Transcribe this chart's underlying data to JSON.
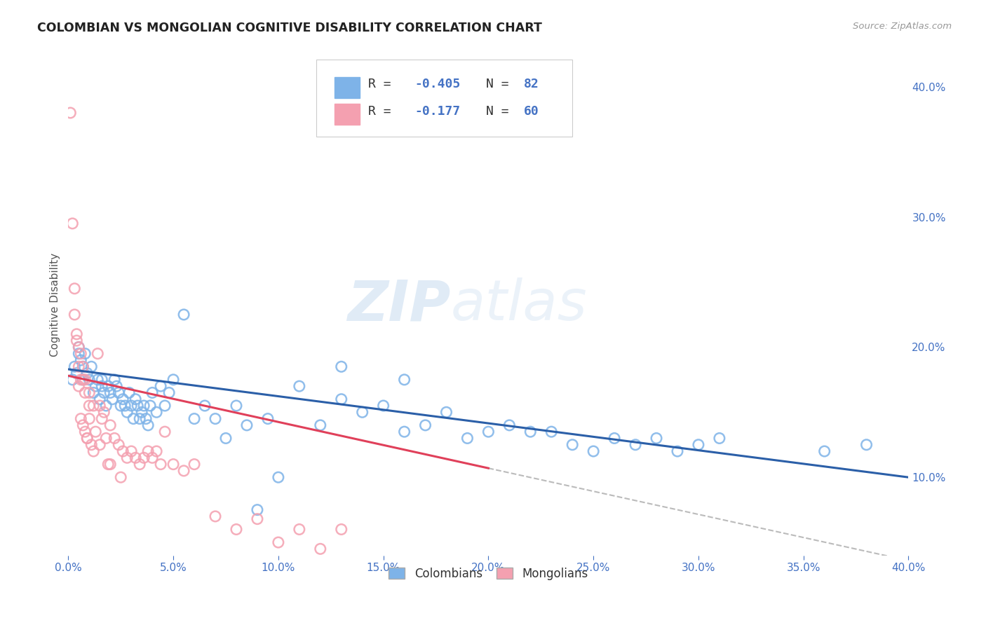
{
  "title": "COLOMBIAN VS MONGOLIAN COGNITIVE DISABILITY CORRELATION CHART",
  "source": "Source: ZipAtlas.com",
  "tick_color": "#4472c4",
  "ylabel": "Cognitive Disability",
  "x_min": 0.0,
  "x_max": 0.4,
  "y_min": 0.04,
  "y_max": 0.425,
  "watermark_zip": "ZIP",
  "watermark_atlas": "atlas",
  "blue_color": "#7EB3E8",
  "pink_color": "#F4A0B0",
  "blue_edge": "#5A9AD4",
  "pink_edge": "#F080A0",
  "blue_line_color": "#2B5FA8",
  "pink_line_color": "#E0405A",
  "dashed_line_color": "#BBBBBB",
  "blue_line_x": [
    0.0,
    0.4
  ],
  "blue_line_y": [
    0.183,
    0.1
  ],
  "pink_line_x": [
    0.0,
    0.2
  ],
  "pink_line_y": [
    0.178,
    0.107
  ],
  "dash_line_x": [
    0.2,
    0.4
  ],
  "dash_line_y": [
    0.107,
    0.036
  ],
  "colombians_x": [
    0.002,
    0.003,
    0.004,
    0.005,
    0.005,
    0.006,
    0.007,
    0.007,
    0.008,
    0.009,
    0.01,
    0.011,
    0.012,
    0.013,
    0.014,
    0.015,
    0.016,
    0.016,
    0.017,
    0.018,
    0.019,
    0.02,
    0.021,
    0.022,
    0.023,
    0.024,
    0.025,
    0.026,
    0.027,
    0.028,
    0.029,
    0.03,
    0.031,
    0.032,
    0.033,
    0.034,
    0.035,
    0.036,
    0.037,
    0.038,
    0.039,
    0.04,
    0.042,
    0.044,
    0.046,
    0.048,
    0.05,
    0.055,
    0.06,
    0.065,
    0.07,
    0.075,
    0.08,
    0.085,
    0.09,
    0.095,
    0.1,
    0.11,
    0.12,
    0.13,
    0.14,
    0.15,
    0.16,
    0.17,
    0.18,
    0.19,
    0.2,
    0.21,
    0.22,
    0.23,
    0.24,
    0.25,
    0.26,
    0.27,
    0.28,
    0.29,
    0.3,
    0.31,
    0.36,
    0.38,
    0.13,
    0.16
  ],
  "colombians_y": [
    0.175,
    0.185,
    0.18,
    0.195,
    0.2,
    0.19,
    0.185,
    0.175,
    0.195,
    0.18,
    0.175,
    0.185,
    0.165,
    0.17,
    0.175,
    0.16,
    0.175,
    0.17,
    0.165,
    0.155,
    0.17,
    0.165,
    0.16,
    0.175,
    0.17,
    0.165,
    0.155,
    0.16,
    0.155,
    0.15,
    0.165,
    0.155,
    0.145,
    0.16,
    0.155,
    0.145,
    0.15,
    0.155,
    0.145,
    0.14,
    0.155,
    0.165,
    0.15,
    0.17,
    0.155,
    0.165,
    0.175,
    0.225,
    0.145,
    0.155,
    0.145,
    0.13,
    0.155,
    0.14,
    0.075,
    0.145,
    0.1,
    0.17,
    0.14,
    0.16,
    0.15,
    0.155,
    0.135,
    0.14,
    0.15,
    0.13,
    0.135,
    0.14,
    0.135,
    0.135,
    0.125,
    0.12,
    0.13,
    0.125,
    0.13,
    0.12,
    0.125,
    0.13,
    0.12,
    0.125,
    0.185,
    0.175
  ],
  "mongolians_x": [
    0.001,
    0.002,
    0.003,
    0.003,
    0.004,
    0.004,
    0.005,
    0.005,
    0.006,
    0.006,
    0.007,
    0.007,
    0.008,
    0.008,
    0.009,
    0.01,
    0.01,
    0.011,
    0.012,
    0.013,
    0.014,
    0.015,
    0.016,
    0.017,
    0.018,
    0.019,
    0.02,
    0.022,
    0.024,
    0.026,
    0.028,
    0.03,
    0.032,
    0.034,
    0.036,
    0.038,
    0.04,
    0.042,
    0.044,
    0.046,
    0.05,
    0.055,
    0.06,
    0.07,
    0.08,
    0.09,
    0.1,
    0.11,
    0.12,
    0.13,
    0.005,
    0.006,
    0.007,
    0.008,
    0.009,
    0.01,
    0.012,
    0.015,
    0.02,
    0.025
  ],
  "mongolians_y": [
    0.38,
    0.295,
    0.245,
    0.225,
    0.21,
    0.205,
    0.2,
    0.185,
    0.195,
    0.175,
    0.185,
    0.175,
    0.165,
    0.175,
    0.13,
    0.165,
    0.155,
    0.125,
    0.155,
    0.135,
    0.195,
    0.155,
    0.145,
    0.15,
    0.13,
    0.11,
    0.14,
    0.13,
    0.125,
    0.12,
    0.115,
    0.12,
    0.115,
    0.11,
    0.115,
    0.12,
    0.115,
    0.12,
    0.11,
    0.135,
    0.11,
    0.105,
    0.11,
    0.07,
    0.06,
    0.068,
    0.05,
    0.06,
    0.045,
    0.06,
    0.17,
    0.145,
    0.14,
    0.135,
    0.13,
    0.145,
    0.12,
    0.125,
    0.11,
    0.1
  ],
  "x_ticks": [
    0.0,
    0.05,
    0.1,
    0.15,
    0.2,
    0.25,
    0.3,
    0.35,
    0.4
  ],
  "y_ticks_right": [
    0.1,
    0.2,
    0.3,
    0.4
  ],
  "legend_line1_r": "R = ",
  "legend_line1_rv": "-0.405",
  "legend_line1_n": "N = ",
  "legend_line1_nv": "82",
  "legend_line2_r": "R =  ",
  "legend_line2_rv": "-0.177",
  "legend_line2_n": "N = ",
  "legend_line2_nv": "60",
  "bottom_label1": "Colombians",
  "bottom_label2": "Mongolians"
}
